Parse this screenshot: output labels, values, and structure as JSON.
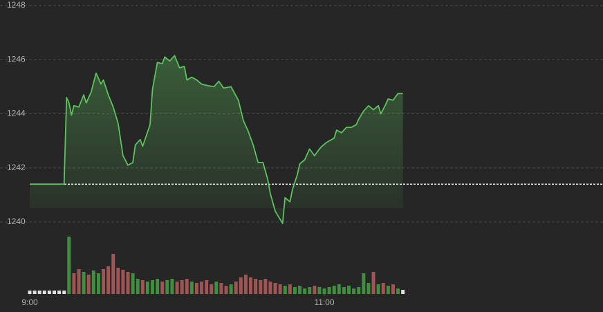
{
  "chart_data": {
    "type": "line",
    "color": "#5cc35c",
    "x": [
      0,
      14,
      15,
      16,
      17,
      18,
      20,
      22,
      23,
      25,
      27,
      29,
      30,
      32,
      34,
      36,
      38,
      40,
      42,
      43,
      45,
      46,
      49,
      50,
      52,
      54,
      55,
      57,
      59,
      61,
      63,
      64,
      66,
      68,
      70,
      72,
      75,
      77,
      79,
      82,
      85,
      87,
      89,
      91,
      93,
      95,
      97,
      98,
      100,
      103,
      104,
      106,
      107,
      109,
      110,
      112,
      114,
      116,
      118,
      119,
      121,
      124,
      125,
      127,
      129,
      131,
      133,
      134,
      136,
      138,
      140,
      142,
      143,
      145,
      146,
      148,
      150,
      152
    ],
    "values": [
      1241.4,
      1241.4,
      1244.6,
      1244.4,
      1243.95,
      1244.3,
      1244.25,
      1244.7,
      1244.4,
      1244.8,
      1245.5,
      1245.1,
      1245.25,
      1244.7,
      1244.25,
      1243.65,
      1242.45,
      1242.1,
      1242.2,
      1242.85,
      1243.05,
      1242.8,
      1243.6,
      1244.9,
      1245.9,
      1245.85,
      1246.1,
      1245.95,
      1246.15,
      1245.7,
      1245.75,
      1245.25,
      1245.35,
      1245.25,
      1245.1,
      1245.05,
      1245.0,
      1245.2,
      1244.95,
      1245.0,
      1244.5,
      1243.75,
      1243.35,
      1242.85,
      1242.2,
      1242.2,
      1241.55,
      1241.05,
      1240.4,
      1239.95,
      1240.9,
      1240.75,
      1241.2,
      1241.75,
      1242.15,
      1242.3,
      1242.7,
      1242.45,
      1242.7,
      1242.8,
      1242.95,
      1243.1,
      1243.4,
      1243.3,
      1243.5,
      1243.5,
      1243.6,
      1243.8,
      1244.1,
      1244.3,
      1244.15,
      1244.3,
      1244.0,
      1244.35,
      1244.55,
      1244.5,
      1244.75,
      1244.75
    ],
    "reference": 1241.4,
    "xlim": [
      0,
      233.5
    ],
    "xticks": [
      {
        "value": 0,
        "label": "9:00"
      },
      {
        "value": 120,
        "label": "11:00"
      }
    ],
    "ylim": [
      1240,
      1248
    ],
    "yticks": [
      1240,
      1242,
      1244,
      1246,
      1248
    ],
    "grid": true,
    "volume": {
      "x": [
        0,
        2,
        4,
        6,
        8,
        10,
        12,
        14,
        16,
        18,
        20,
        22,
        24,
        26,
        28,
        30,
        32,
        34,
        36,
        38,
        40,
        42,
        44,
        46,
        48,
        50,
        52,
        54,
        56,
        58,
        60,
        62,
        64,
        66,
        68,
        70,
        72,
        74,
        76,
        78,
        80,
        82,
        84,
        86,
        88,
        90,
        92,
        94,
        96,
        98,
        100,
        102,
        104,
        106,
        108,
        110,
        112,
        114,
        116,
        118,
        120,
        122,
        124,
        126,
        128,
        130,
        132,
        134,
        136,
        138,
        140,
        142,
        144,
        146,
        148,
        150,
        152
      ],
      "values": [
        5,
        5,
        5,
        5,
        5,
        5,
        5,
        5,
        83,
        30,
        36,
        32,
        28,
        34,
        30,
        36,
        40,
        58,
        38,
        35,
        32,
        30,
        22,
        20,
        18,
        20,
        22,
        18,
        20,
        22,
        18,
        20,
        22,
        18,
        16,
        18,
        20,
        14,
        18,
        16,
        12,
        14,
        18,
        24,
        28,
        24,
        22,
        20,
        22,
        18,
        16,
        14,
        12,
        14,
        10,
        12,
        8,
        10,
        12,
        10,
        8,
        10,
        12,
        14,
        10,
        12,
        8,
        10,
        30,
        16,
        32,
        14,
        16,
        12,
        14,
        8,
        6
      ],
      "ylim": [
        0,
        90
      ],
      "up_color": "#3f8f3f",
      "down_color": "#a05555",
      "flat_color": "#e0e0e0"
    }
  }
}
